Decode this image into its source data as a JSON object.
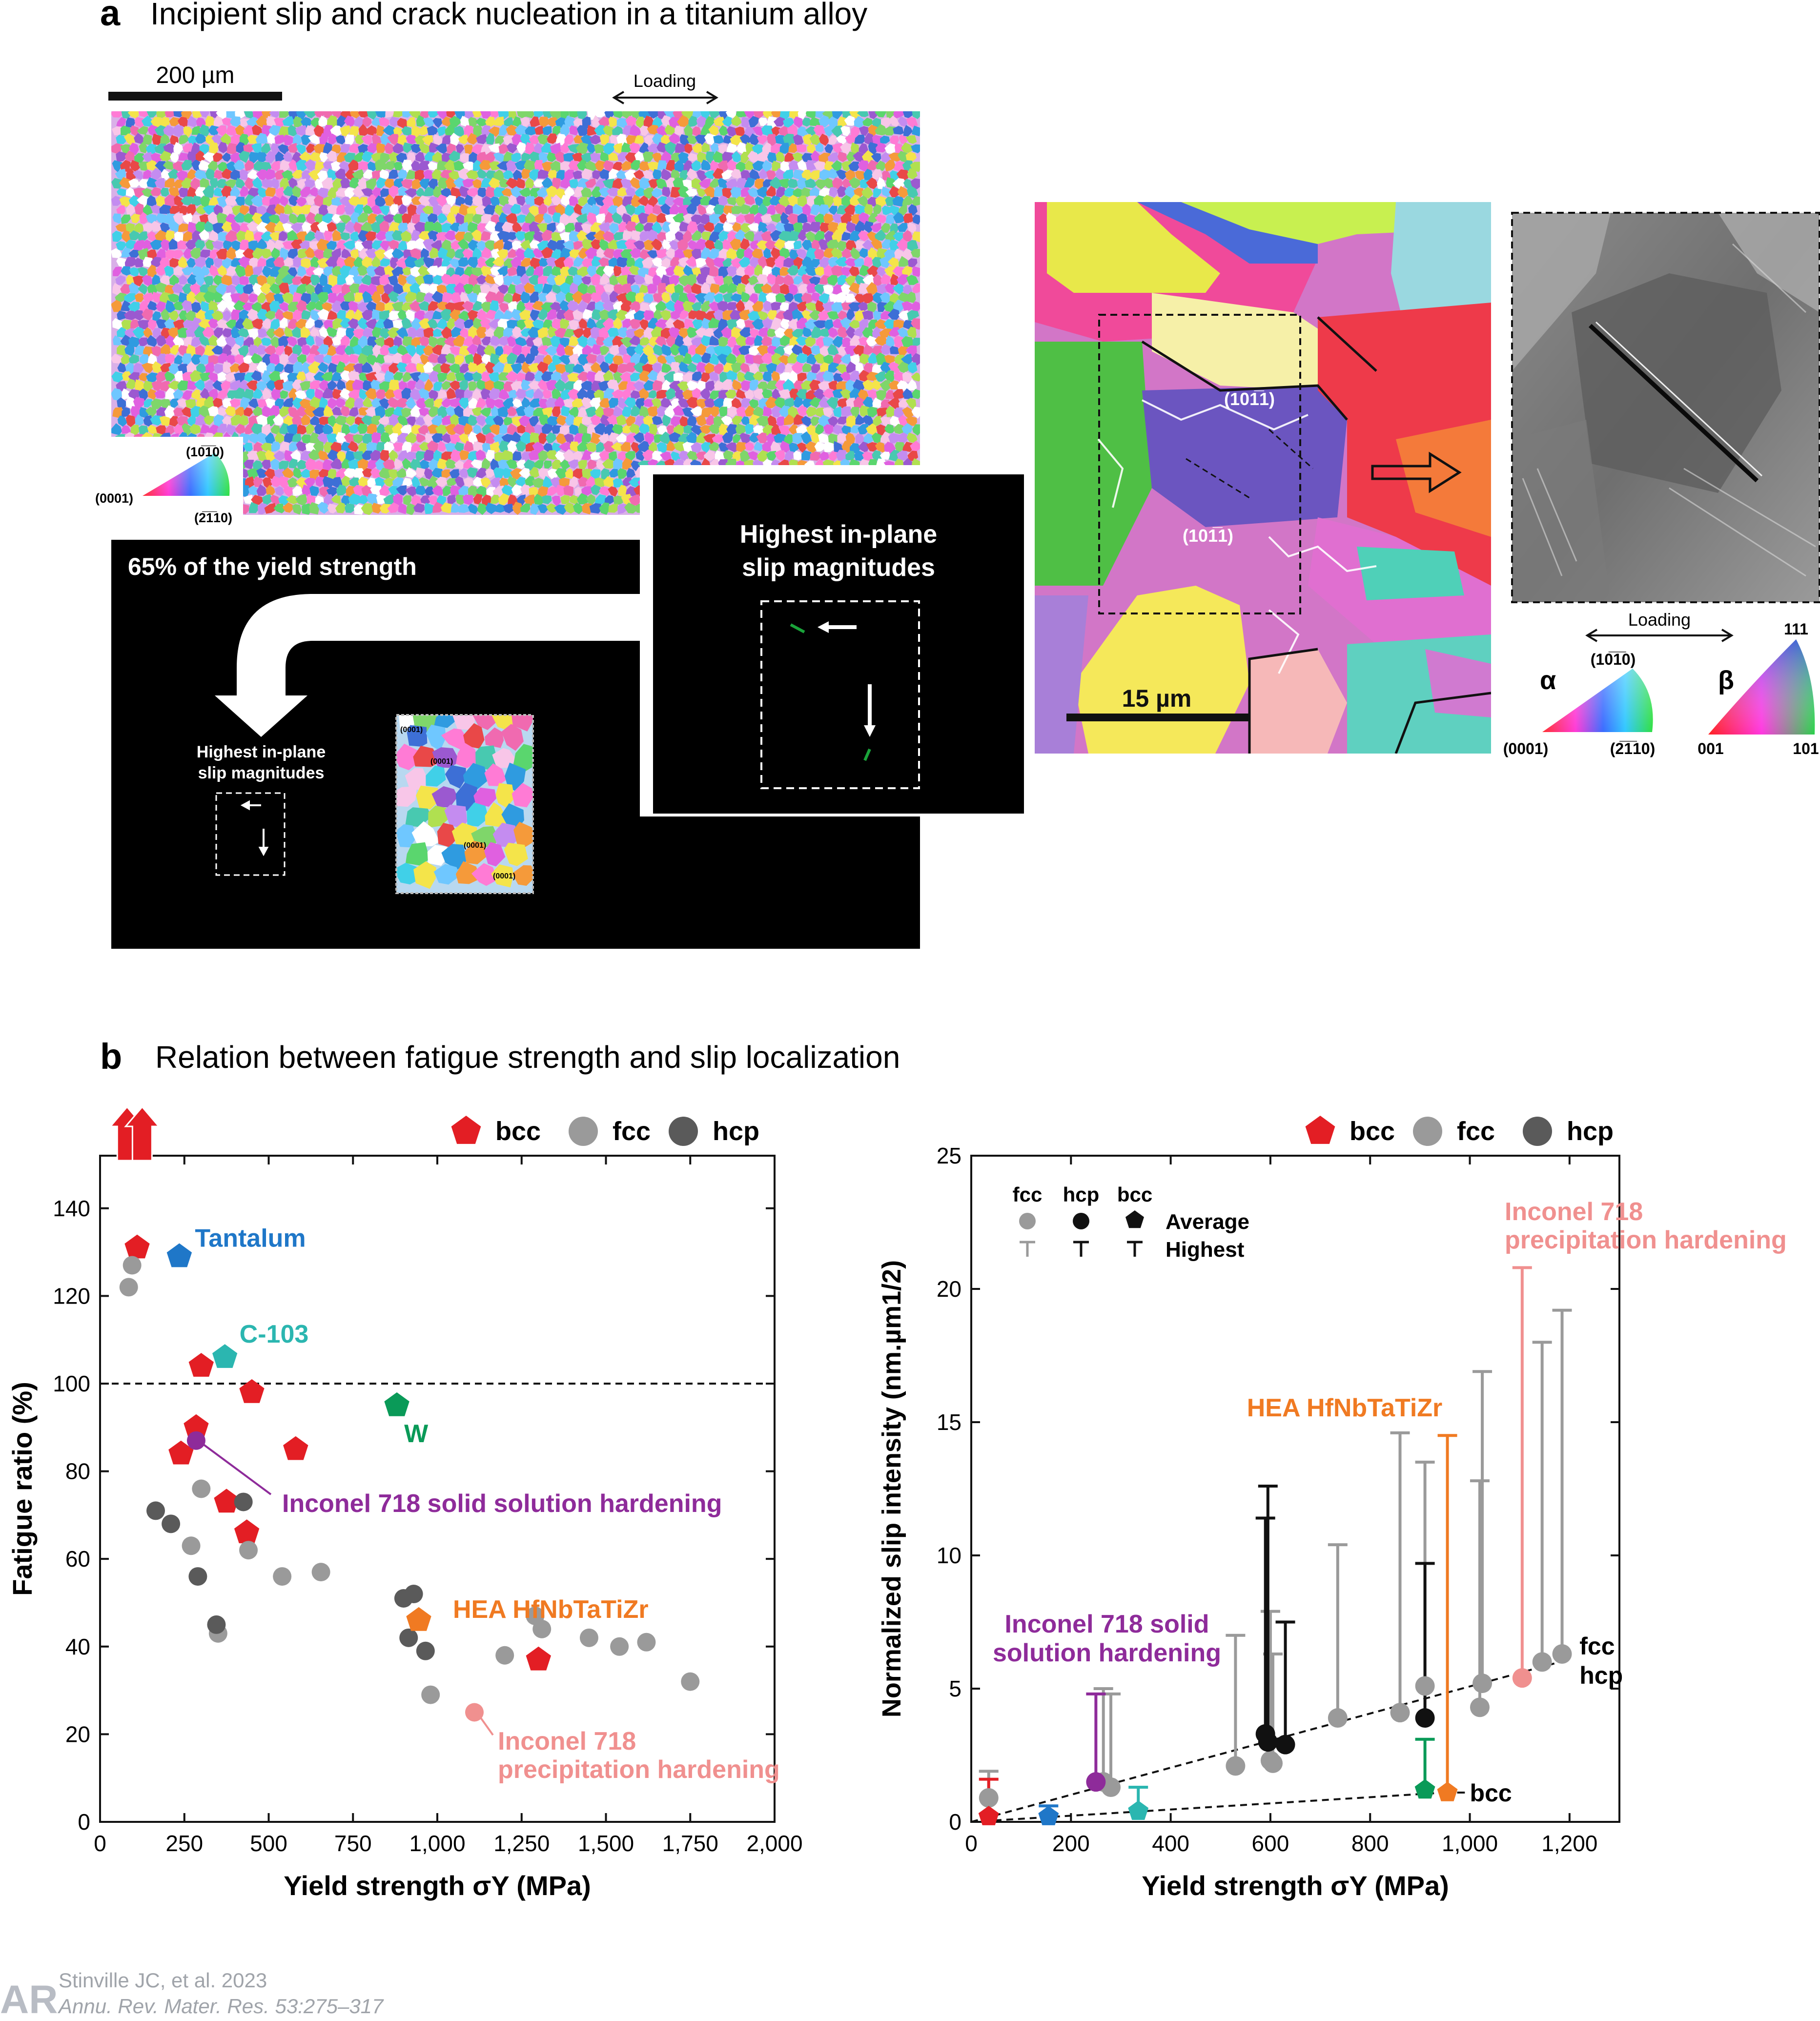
{
  "panel_a": {
    "letter": "a",
    "title": "Incipient slip and crack nucleation in a titanium alloy",
    "scalebar_main": "200 µm",
    "loading": "Loading",
    "ipf_key": {
      "top": "(10̅1̅0)",
      "left": "(0001)",
      "right": "(2̅1̅10)"
    },
    "yield_label": "65% of the yield strength",
    "slip_label_small": [
      "Highest in-plane",
      "slip magnitudes"
    ],
    "slip_label_large": [
      "Highest in-plane",
      "slip magnitudes"
    ],
    "inset_orients": [
      "(0001)",
      "(0001)",
      "(0001)",
      "(0001)"
    ],
    "zoom_planes": [
      "(101̅1)",
      "(101̅1)"
    ],
    "scalebar_zoom": "15 µm",
    "loading_zoom": "Loading",
    "alpha_key": {
      "symbol": "α",
      "top": "(10̅1̅0)",
      "left": "(0001)",
      "right": "(2̅1̅10)"
    },
    "beta_key": {
      "symbol": "β",
      "top": "111",
      "left": "001",
      "right": "101"
    }
  },
  "panel_b": {
    "letter": "b",
    "title": "Relation between fatigue strength and slip localization"
  },
  "colors": {
    "bcc": "#e31e24",
    "fcc": "#9a9a9a",
    "hcp": "#5a5a5a",
    "tantalum": "#1f77c8",
    "c103": "#2bb6b0",
    "w": "#0a9a58",
    "inconel_ss": "#8e2b9a",
    "hea": "#f07a22",
    "inconel_ph": "#f0908f"
  },
  "chart_data": [
    {
      "type": "scatter",
      "xlabel": "Yield strength σY (MPa)",
      "ylabel": "Fatigue ratio (%)",
      "xlim": [
        0,
        2000
      ],
      "ylim": [
        0,
        152
      ],
      "xticks": [
        0,
        250,
        500,
        750,
        1000,
        1250,
        1500,
        1750,
        2000
      ],
      "xtick_labels": [
        "0",
        "250",
        "500",
        "750",
        "1,000",
        "1,250",
        "1,500",
        "1,750",
        "2,000"
      ],
      "yticks": [
        0,
        20,
        40,
        60,
        80,
        100,
        120,
        140
      ],
      "legend": [
        "bcc",
        "fcc",
        "hcp"
      ],
      "reference_line": 100,
      "off_scale_markers": [
        80,
        125
      ],
      "series": [
        {
          "name": "bcc",
          "marker": "pentagon",
          "points": [
            [
              110,
              131
            ],
            [
              300,
              104
            ],
            [
              450,
              98
            ],
            [
              285,
              90
            ],
            [
              240,
              84
            ],
            [
              580,
              85
            ],
            [
              375,
              73
            ],
            [
              435,
              66
            ],
            [
              1300,
              37
            ]
          ]
        },
        {
          "name": "fcc",
          "marker": "circle",
          "points": [
            [
              85,
              122
            ],
            [
              95,
              127
            ],
            [
              300,
              76
            ],
            [
              270,
              63
            ],
            [
              440,
              62
            ],
            [
              540,
              56
            ],
            [
              655,
              57
            ],
            [
              350,
              43
            ],
            [
              980,
              29
            ],
            [
              1200,
              38
            ],
            [
              1290,
              47
            ],
            [
              1310,
              44
            ],
            [
              1450,
              42
            ],
            [
              1540,
              40
            ],
            [
              1620,
              41
            ],
            [
              1750,
              32
            ]
          ]
        },
        {
          "name": "hcp",
          "marker": "circle",
          "points": [
            [
              165,
              71
            ],
            [
              210,
              68
            ],
            [
              290,
              56
            ],
            [
              345,
              45
            ],
            [
              425,
              73
            ],
            [
              900,
              51
            ],
            [
              930,
              52
            ],
            [
              915,
              42
            ],
            [
              965,
              39
            ]
          ]
        }
      ],
      "annotations": [
        {
          "label": "Tantalum",
          "x": 235,
          "y": 129,
          "marker": "pentagon"
        },
        {
          "label": "C-103",
          "x": 370,
          "y": 106,
          "marker": "pentagon"
        },
        {
          "label": "W",
          "x": 880,
          "y": 95,
          "marker": "pentagon"
        },
        {
          "label": "Inconel 718 solid solution hardening",
          "x": 285,
          "y": 87,
          "marker": "circle"
        },
        {
          "label": "HEA HfNbTaTiZr",
          "x": 945,
          "y": 46,
          "marker": "pentagon"
        },
        {
          "label": "Inconel 718",
          "label2": "precipitation hardening",
          "x": 1110,
          "y": 25,
          "marker": "circle"
        }
      ]
    },
    {
      "type": "scatter",
      "xlabel": "Yield strength σY (MPa)",
      "ylabel": "Normalized slip intensity (nm.µm1/2)",
      "xlim": [
        0,
        1300
      ],
      "ylim": [
        0,
        25
      ],
      "xticks": [
        0,
        200,
        400,
        600,
        800,
        1000,
        1200
      ],
      "xtick_labels": [
        "0",
        "200",
        "400",
        "600",
        "800",
        "1,000",
        "1,200"
      ],
      "yticks": [
        0,
        5,
        10,
        15,
        20,
        25
      ],
      "legend": [
        "bcc",
        "fcc",
        "hcp"
      ],
      "inner_legend": {
        "cols": [
          "fcc",
          "hcp",
          "bcc"
        ],
        "rows": [
          "Average",
          "Highest"
        ]
      },
      "trend_lines": [
        {
          "name": "fcc-hcp",
          "from": [
            0,
            0
          ],
          "to": [
            1200,
            6.1
          ]
        },
        {
          "name": "bcc",
          "from": [
            0,
            0
          ],
          "to": [
            950,
            1.1
          ]
        }
      ],
      "trend_labels": [
        "fcc",
        "hcp",
        "bcc"
      ],
      "series": [
        {
          "name": "fcc",
          "marker": "circle",
          "avg_high": [
            [
              35,
              0.9,
              1.9
            ],
            [
              265,
              1.5,
              5
            ],
            [
              280,
              1.3,
              4.8
            ],
            [
              530,
              2.1,
              7
            ],
            [
              600,
              2.3,
              7.9
            ],
            [
              605,
              2.2,
              6.3
            ],
            [
              735,
              3.9,
              10.4
            ],
            [
              860,
              4.1,
              14.6
            ],
            [
              910,
              5.1,
              13.5
            ],
            [
              1025,
              5.2,
              16.9
            ],
            [
              1020,
              4.3,
              12.8
            ],
            [
              1145,
              6.0,
              18.0
            ],
            [
              1185,
              6.3,
              19.2
            ]
          ]
        },
        {
          "name": "hcp",
          "marker": "circle",
          "avg_high": [
            [
              590,
              3.3,
              11.4
            ],
            [
              595,
              3.0,
              12.6
            ],
            [
              630,
              2.9,
              7.5
            ],
            [
              910,
              3.9,
              9.7
            ]
          ]
        },
        {
          "name": "bcc",
          "marker": "pentagon",
          "avg_high": [
            [
              35,
              0.2,
              1.6
            ],
            [
              155,
              0.2,
              0.6
            ],
            [
              335,
              0.4,
              1.3
            ],
            [
              910,
              1.2,
              3.1
            ],
            [
              955,
              1.1,
              14.5
            ]
          ]
        }
      ],
      "highlights": [
        {
          "label": "Inconel 718 solid",
          "label2": "solution hardening",
          "x": 250,
          "y": 1.5,
          "high": 4.8,
          "color_key": "inconel_ss"
        },
        {
          "label": "HEA HfNbTaTiZr",
          "x": 955,
          "y": 1.1,
          "high": 14.5,
          "color_key": "hea"
        },
        {
          "label": "Inconel 718",
          "label2": "precipitation hardening",
          "x": 1105,
          "y": 5.4,
          "high": 20.8,
          "color_key": "inconel_ph"
        }
      ]
    }
  ],
  "footer": {
    "logo": "AR",
    "line1": "Stinville JC, et al. 2023",
    "line2": "Annu. Rev. Mater. Res. 53:275–317"
  }
}
